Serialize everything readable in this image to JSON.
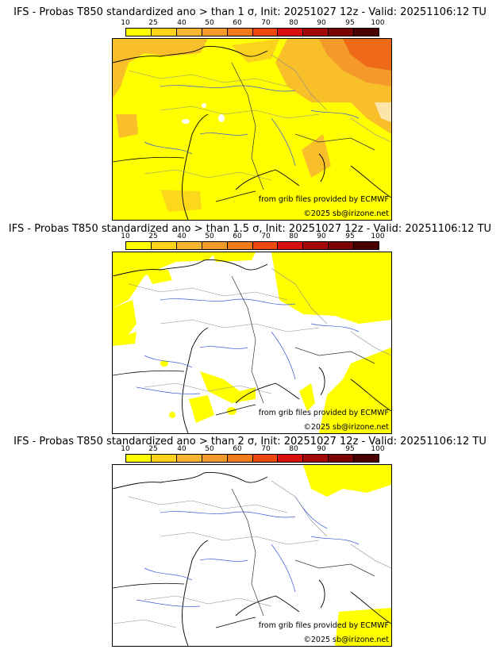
{
  "panels": [
    {
      "title": "IFS - Probas T850  standardized ano > than 1 σ, Init: 20251027 12z - Valid: 20251106:12 TU"
    },
    {
      "title": "IFS - Probas T850  standardized ano > than 1.5 σ, Init: 20251027 12z - Valid: 20251106:12 TU"
    },
    {
      "title": "IFS - Probas T850  standardized ano > than 2 σ, Init: 20251027 12z - Valid: 20251106:12 TU"
    }
  ],
  "colorbar": {
    "ticks": [
      "10",
      "25",
      "40",
      "50",
      "60",
      "70",
      "80",
      "90",
      "95",
      "100"
    ],
    "colors": [
      "#ffff00",
      "#ffd21a",
      "#f7b430",
      "#f39a2a",
      "#f17a1a",
      "#ee4a10",
      "#d81010",
      "#a30808",
      "#7a0404",
      "#4a0000"
    ]
  },
  "credits": {
    "source": "from grib files provided by ECMWF",
    "copyright": "©2025 sb@irizone.net"
  }
}
